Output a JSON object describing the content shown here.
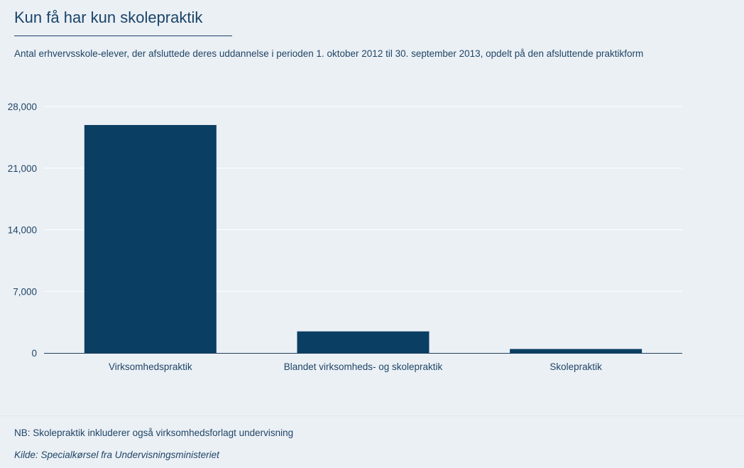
{
  "colors": {
    "background": "#ebf0f5",
    "bar": "#0b3e63",
    "text": "#1f4566",
    "grid": "#ffffff",
    "axis": "#1f3f5c"
  },
  "chart_data": {
    "type": "bar",
    "title": "Kun få har kun skolepraktik",
    "subtitle": "Antal erhvervsskole-elever, der afsluttede deres uddannelse i perioden 1. oktober 2012 til 30. september 2013, opdelt på den afsluttende praktikform",
    "categories": [
      "Virksomhedspraktik",
      "Blandet virksomheds- og skolepraktik",
      "Skolepraktik"
    ],
    "values": [
      25900,
      2450,
      450
    ],
    "ylim": [
      0,
      28000
    ],
    "yticks": [
      0,
      7000,
      14000,
      21000,
      28000
    ],
    "ytick_labels": [
      "0",
      "7,000",
      "14,000",
      "21,000",
      "28,000"
    ],
    "grid": true,
    "xlabel": "",
    "ylabel": ""
  },
  "footer": {
    "note": "NB: Skolepraktik inkluderer også virksomhedsforlagt undervisning",
    "source": "Kilde: Specialkørsel fra Undervisningsministeriet"
  }
}
